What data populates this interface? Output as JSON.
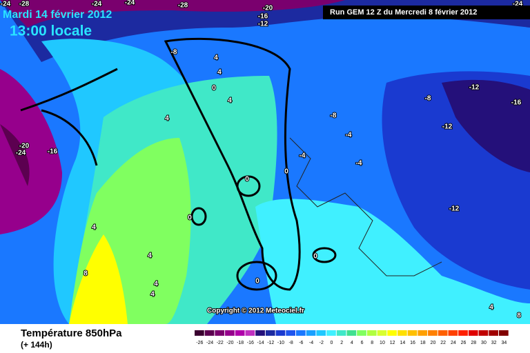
{
  "header": {
    "date": "Mardi 14 février 2012",
    "time": "13:00 locale",
    "run": "Run GEM 12 Z du Mercredi 8 février 2012"
  },
  "copyright": "Copyright © 2012 Meteociel.fr",
  "footer": {
    "title": "Température 850hPa",
    "lead": "(+ 144h)"
  },
  "contour_labels": [
    -24,
    -28,
    -24,
    -24,
    -28,
    -20,
    -16,
    -12,
    -24,
    -8,
    4,
    4,
    0,
    4,
    4,
    -20,
    -24,
    -16,
    -8,
    -4,
    -8,
    -12,
    -16,
    -12,
    -4,
    -4,
    0,
    0,
    0,
    -12,
    4,
    4,
    8,
    4,
    4,
    0,
    0,
    4,
    8
  ],
  "colorbar": {
    "values": [
      -26,
      -24,
      -22,
      -20,
      -18,
      -16,
      -14,
      -12,
      -10,
      -8,
      -6,
      -4,
      -2,
      0,
      2,
      4,
      6,
      8,
      10,
      12,
      14,
      16,
      18,
      20,
      22,
      24,
      26,
      28,
      30,
      32,
      34
    ],
    "colors": [
      "#3a0030",
      "#5c0050",
      "#7a006e",
      "#96008c",
      "#b000aa",
      "#c030c0",
      "#24107a",
      "#1c2aa0",
      "#1a3ad0",
      "#1f55ee",
      "#1a78ff",
      "#1aa0ff",
      "#20c8ff",
      "#40f0ff",
      "#40e8c8",
      "#40e090",
      "#80ff60",
      "#b0ff40",
      "#d8ff30",
      "#ffff00",
      "#ffe000",
      "#ffc000",
      "#ffa000",
      "#ff8000",
      "#ff6000",
      "#ff4000",
      "#ff2000",
      "#e00000",
      "#c00000",
      "#a00000",
      "#800000"
    ]
  }
}
